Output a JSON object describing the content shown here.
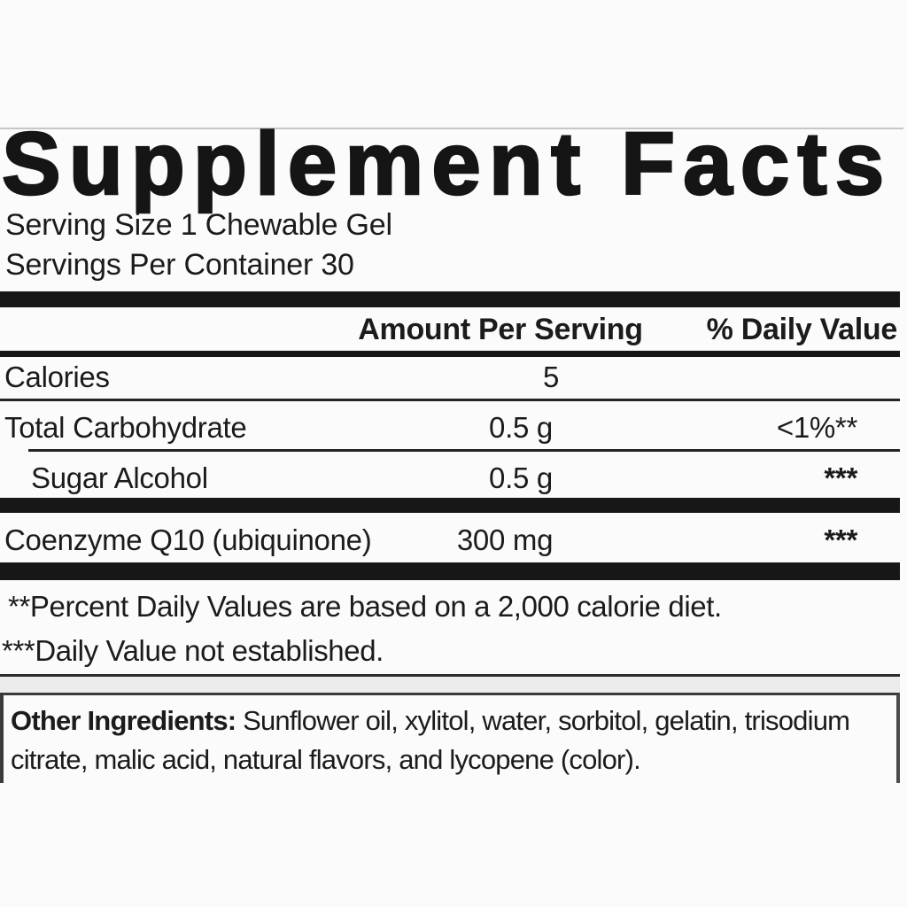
{
  "label": {
    "title": "Supplement Facts",
    "serving_size": "Serving Size 1 Chewable Gel",
    "servings_per_container": "Servings Per Container 30",
    "table": {
      "amount_header": "Amount Per Serving",
      "dv_header": "% Daily Value",
      "rows": [
        {
          "name": "Calories",
          "amount": "5",
          "dv": ""
        },
        {
          "name": "Total Carbohydrate",
          "amount": "0.5 g",
          "dv": "<1%**"
        },
        {
          "name": "Sugar Alcohol",
          "amount": "0.5 g",
          "dv": "***",
          "indent": true
        },
        {
          "name": "Coenzyme Q10 (ubiquinone)",
          "amount": "300 mg",
          "dv": "***"
        }
      ]
    },
    "footnotes": [
      "**Percent Daily Values are based on a 2,000 calorie diet.",
      "***Daily Value not established."
    ],
    "other_ingredients": {
      "label": "Other Ingredients:",
      "text": " Sunflower oil, xylitol, water, sorbitol, gelatin, trisodium citrate, malic acid, natural flavors, and lycopene (color)."
    }
  },
  "colors": {
    "ink": "#1b1b1b",
    "bar": "#171717",
    "background": "#fbfbfb",
    "faint_rule": "#c6c6c6"
  }
}
